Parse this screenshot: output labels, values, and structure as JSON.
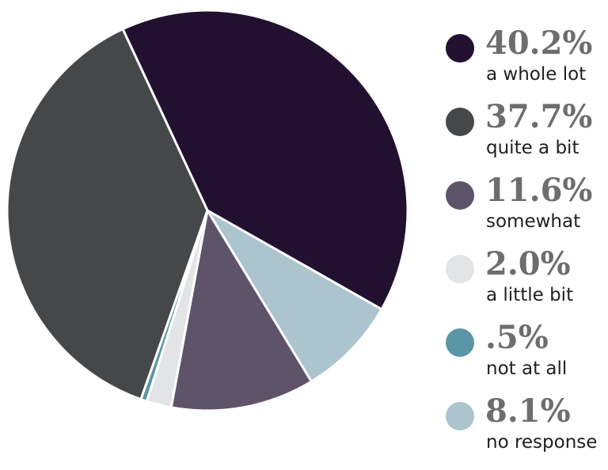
{
  "chart_data": {
    "type": "pie",
    "title": "",
    "slices": [
      {
        "percent_label": "40.2%",
        "label": "a whole lot",
        "value": 40.2,
        "color": "#221031"
      },
      {
        "percent_label": "8.1%",
        "label": "no response",
        "value": 8.1,
        "color": "#abc4cd"
      },
      {
        "percent_label": "11.6%",
        "label": "somewhat",
        "value": 11.6,
        "color": "#5f5369"
      },
      {
        "percent_label": "2.0%",
        "label": "a little bit",
        "value": 2.0,
        "color": "#e3e4e6"
      },
      {
        "percent_label": ".5%",
        "label": "not at all",
        "value": 0.5,
        "color": "#5a96a6"
      },
      {
        "percent_label": "37.7%",
        "label": "quite a bit",
        "value": 37.7,
        "color": "#454749"
      }
    ],
    "legend": {
      "position": "right",
      "order": [
        "a whole lot",
        "quite a bit",
        "somewhat",
        "a little bit",
        "not at all",
        "no response"
      ]
    }
  }
}
